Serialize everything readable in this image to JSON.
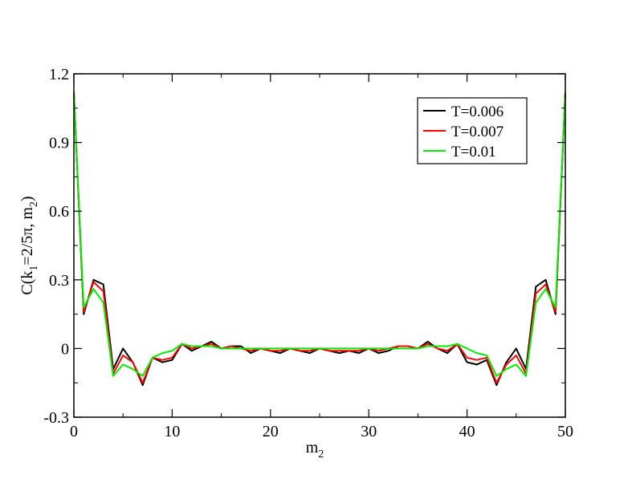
{
  "chart_data": {
    "type": "line",
    "xlabel": "m",
    "xlabel_sub": "2",
    "ylabel_parts": {
      "pre": "C(k",
      "sub1": "1",
      "mid": "=2/5π, m",
      "sub2": "2",
      "post": ")"
    },
    "xlim": [
      0,
      50
    ],
    "ylim": [
      -0.3,
      1.2
    ],
    "x_ticks": [
      0,
      10,
      20,
      30,
      40,
      50
    ],
    "x_tick_labels": [
      "0",
      "10",
      "20",
      "30",
      "40",
      "50"
    ],
    "y_ticks": [
      -0.3,
      0,
      0.3,
      0.6,
      0.9,
      1.2
    ],
    "y_tick_labels": [
      "-0.3",
      "0",
      "0.3",
      "0.6",
      "0.9",
      "1.2"
    ],
    "grid": false,
    "legend_position": "top-right",
    "x": [
      0,
      1,
      2,
      3,
      4,
      5,
      6,
      7,
      8,
      9,
      10,
      11,
      12,
      13,
      14,
      15,
      16,
      17,
      18,
      19,
      20,
      21,
      22,
      23,
      24,
      25,
      26,
      27,
      28,
      29,
      30,
      31,
      32,
      33,
      34,
      35,
      36,
      37,
      38,
      39,
      40,
      41,
      42,
      43,
      44,
      45,
      46,
      47,
      48,
      49,
      50
    ],
    "series": [
      {
        "name": "T=0.006",
        "color": "#000000",
        "values": [
          1.12,
          0.15,
          0.3,
          0.28,
          -0.09,
          0.0,
          -0.06,
          -0.16,
          -0.04,
          -0.06,
          -0.05,
          0.02,
          -0.01,
          0.01,
          0.03,
          0.0,
          0.01,
          0.01,
          -0.02,
          0.0,
          -0.01,
          -0.02,
          0.0,
          -0.01,
          -0.02,
          0.0,
          -0.01,
          -0.02,
          -0.01,
          -0.02,
          0.0,
          -0.02,
          -0.01,
          0.01,
          0.01,
          0.0,
          0.03,
          0.0,
          -0.02,
          0.02,
          -0.06,
          -0.07,
          -0.05,
          -0.16,
          -0.06,
          0.0,
          -0.09,
          0.27,
          0.3,
          0.15,
          1.12
        ]
      },
      {
        "name": "T=0.007",
        "color": "#ff0000",
        "values": [
          1.12,
          0.16,
          0.29,
          0.25,
          -0.11,
          -0.03,
          -0.06,
          -0.15,
          -0.04,
          -0.05,
          -0.04,
          0.02,
          0.0,
          0.01,
          0.02,
          0.0,
          0.01,
          0.0,
          -0.01,
          0.0,
          -0.01,
          -0.01,
          0.0,
          -0.01,
          -0.01,
          0.0,
          -0.01,
          -0.01,
          -0.01,
          -0.01,
          0.0,
          -0.01,
          0.0,
          0.01,
          0.01,
          0.0,
          0.02,
          0.0,
          -0.01,
          0.02,
          -0.04,
          -0.05,
          -0.04,
          -0.15,
          -0.07,
          -0.03,
          -0.11,
          0.24,
          0.28,
          0.16,
          1.12
        ]
      },
      {
        "name": "T=0.01",
        "color": "#00ee00",
        "values": [
          1.12,
          0.18,
          0.26,
          0.2,
          -0.12,
          -0.07,
          -0.09,
          -0.12,
          -0.04,
          -0.02,
          -0.01,
          0.02,
          0.01,
          0.01,
          0.01,
          0.0,
          0.0,
          0.0,
          0.0,
          0.0,
          0.0,
          0.0,
          0.0,
          0.0,
          0.0,
          0.0,
          0.0,
          0.0,
          0.0,
          0.0,
          0.0,
          0.0,
          0.0,
          0.0,
          0.0,
          0.0,
          0.01,
          0.01,
          0.01,
          0.02,
          0.0,
          -0.02,
          -0.03,
          -0.12,
          -0.09,
          -0.07,
          -0.12,
          0.2,
          0.26,
          0.18,
          1.12
        ]
      }
    ]
  }
}
